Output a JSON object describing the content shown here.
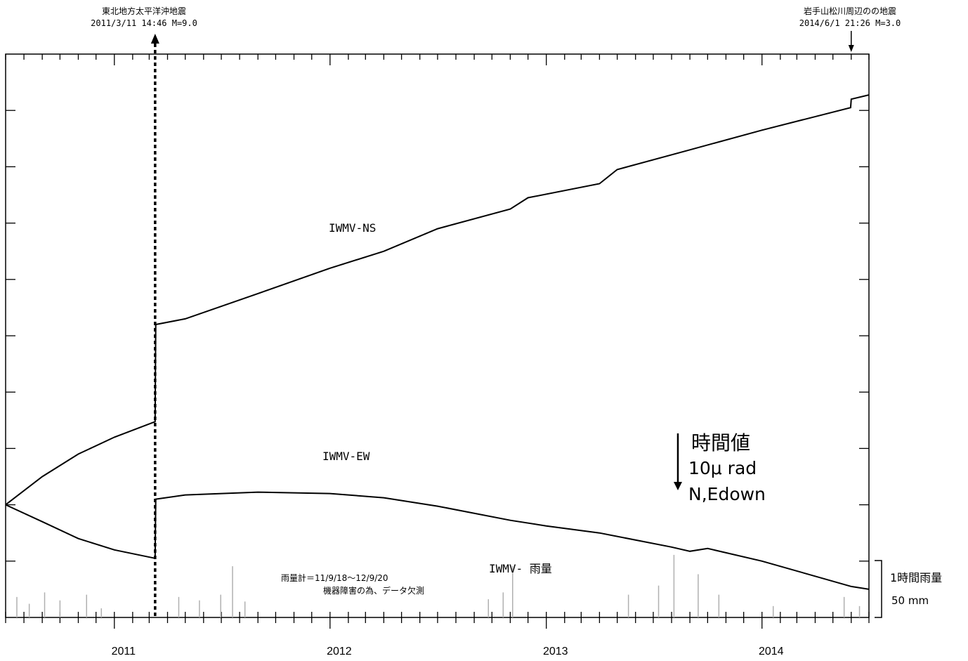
{
  "annotations": {
    "eq1_title": "東北地方太平洋沖地震",
    "eq1_detail": "2011/3/11 14:46 M=9.0",
    "eq2_title": "岩手山松川周辺のの地震",
    "eq2_detail": "2014/6/1 21:26 M=3.0"
  },
  "legend": {
    "unit_title": "時間値",
    "unit_scale": "10μ rad",
    "unit_direction": "N,Edown"
  },
  "rain": {
    "note_line1": "雨量計＝11/9/18～12/9/20",
    "note_line2": "機器障害の為、データ欠測",
    "scale_title": "1時間雨量",
    "scale_value": "50 mm"
  },
  "chart_data": {
    "type": "line",
    "x_ticks": [
      "2011",
      "2012",
      "2013",
      "2014"
    ],
    "y_unit_note": "10μ rad per major division",
    "series": [
      {
        "name": "IWMV-NS",
        "color": "#000000",
        "points": [
          [
            "2010-07-01",
            4.0
          ],
          [
            "2010-09-01",
            5.0
          ],
          [
            "2010-11-01",
            5.8
          ],
          [
            "2011-01-01",
            6.4
          ],
          [
            "2011-03-11",
            6.95
          ],
          [
            "2011-03-12",
            10.4
          ],
          [
            "2011-05-01",
            10.6
          ],
          [
            "2011-09-01",
            11.5
          ],
          [
            "2012-01-01",
            12.4
          ],
          [
            "2012-04-01",
            13.0
          ],
          [
            "2012-07-01",
            13.8
          ],
          [
            "2012-11-01",
            14.5
          ],
          [
            "2012-12-01",
            14.9
          ],
          [
            "2013-04-01",
            15.4
          ],
          [
            "2013-05-01",
            15.9
          ],
          [
            "2013-09-01",
            16.6
          ],
          [
            "2014-01-01",
            17.3
          ],
          [
            "2014-05-31",
            18.1
          ],
          [
            "2014-06-01",
            18.4
          ],
          [
            "2014-07-01",
            18.55
          ]
        ]
      },
      {
        "name": "IWMV-EW",
        "color": "#000000",
        "points": [
          [
            "2010-07-01",
            4.0
          ],
          [
            "2010-09-01",
            3.4
          ],
          [
            "2010-11-01",
            2.8
          ],
          [
            "2011-01-01",
            2.4
          ],
          [
            "2011-03-11",
            2.1
          ],
          [
            "2011-03-12",
            4.2
          ],
          [
            "2011-05-01",
            4.35
          ],
          [
            "2011-09-01",
            4.45
          ],
          [
            "2012-01-01",
            4.4
          ],
          [
            "2012-04-01",
            4.25
          ],
          [
            "2012-07-01",
            3.95
          ],
          [
            "2012-11-01",
            3.45
          ],
          [
            "2013-01-01",
            3.25
          ],
          [
            "2013-04-01",
            3.0
          ],
          [
            "2013-08-01",
            2.5
          ],
          [
            "2013-09-01",
            2.35
          ],
          [
            "2013-10-01",
            2.45
          ],
          [
            "2014-01-01",
            2.0
          ],
          [
            "2014-06-01",
            1.1
          ],
          [
            "2014-07-01",
            1.0
          ]
        ]
      }
    ],
    "rain_series": {
      "name": "IWMV- 雨量",
      "unit": "mm/h",
      "color": "#b0b0b0",
      "gap": [
        "2011-09-18",
        "2012-09-20"
      ],
      "peaks": [
        [
          "2010-07-20",
          18
        ],
        [
          "2010-08-10",
          12
        ],
        [
          "2010-09-05",
          22
        ],
        [
          "2010-10-01",
          15
        ],
        [
          "2010-11-15",
          20
        ],
        [
          "2010-12-10",
          8
        ],
        [
          "2011-04-20",
          18
        ],
        [
          "2011-05-25",
          15
        ],
        [
          "2011-06-30",
          20
        ],
        [
          "2011-07-20",
          45
        ],
        [
          "2011-08-10",
          14
        ],
        [
          "2012-09-25",
          16
        ],
        [
          "2012-10-20",
          22
        ],
        [
          "2012-11-05",
          45
        ],
        [
          "2013-05-20",
          20
        ],
        [
          "2013-07-10",
          28
        ],
        [
          "2013-08-05",
          55
        ],
        [
          "2013-09-15",
          38
        ],
        [
          "2013-10-20",
          20
        ],
        [
          "2014-01-20",
          10
        ],
        [
          "2014-05-20",
          18
        ],
        [
          "2014-06-15",
          10
        ]
      ]
    },
    "events": [
      {
        "date": "2011-03-11",
        "label": "東北地方太平洋沖地震"
      },
      {
        "date": "2014-06-01",
        "label": "岩手山松川周辺のの地震"
      }
    ]
  }
}
